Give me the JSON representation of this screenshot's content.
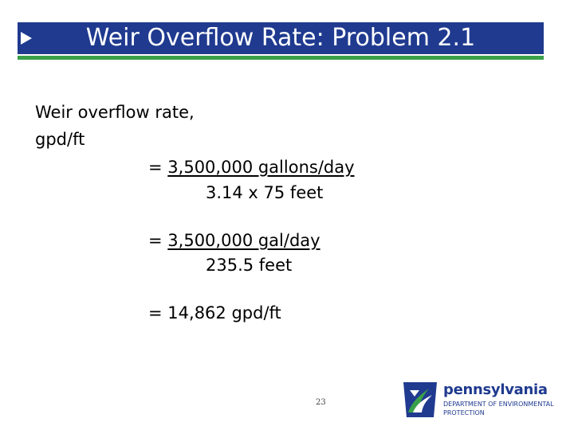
{
  "slide": {
    "title": "Weir Overflow Rate: Problem 2.1",
    "label_line1": "Weir overflow rate,",
    "label_line2": "gpd/ft",
    "step1": {
      "eq": "=",
      "numerator": "3,500,000 gallons/day",
      "denominator": "3.14 x 75 feet"
    },
    "step2": {
      "eq": "=",
      "numerator": "3,500,000 gal/day",
      "denominator": "235.5 feet"
    },
    "step3": {
      "eq": "=",
      "result": "14,862 gpd/ft"
    },
    "page_number": "23"
  },
  "logo": {
    "name": "pennsylvania",
    "line1": "DEPARTMENT OF ENVIRONMENTAL",
    "line2": "PROTECTION"
  },
  "colors": {
    "title_bar": "#1f3a8f",
    "title_underline": "#3aa04a",
    "logo_blue": "#1f3a8f",
    "logo_green": "#3aa04a"
  },
  "icons": [
    "arrow-bullet-icon",
    "keystone-logo-icon"
  ]
}
